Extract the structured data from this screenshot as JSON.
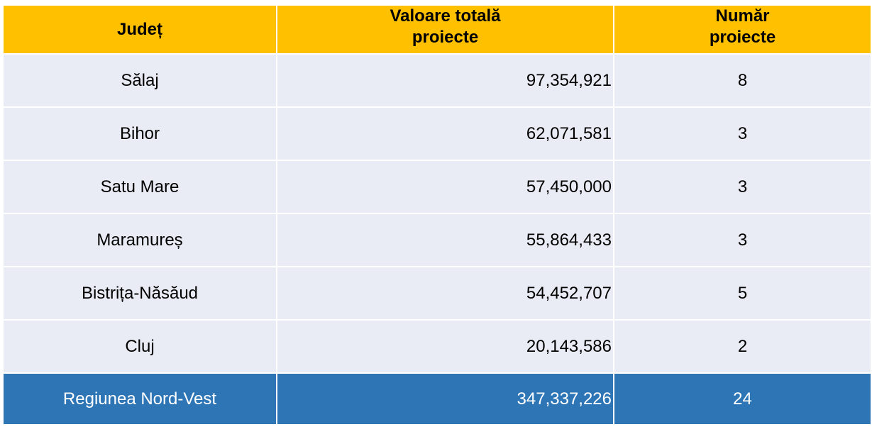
{
  "headers": {
    "county": "Județ",
    "total_value_line1": "Valoare totală",
    "total_value_line2": "proiecte",
    "project_count_line1": "Număr",
    "project_count_line2": "proiecte"
  },
  "rows": [
    {
      "county": "Sălaj",
      "value": "97,354,921",
      "count": "8"
    },
    {
      "county": "Bihor",
      "value": "62,071,581",
      "count": "3"
    },
    {
      "county": "Satu Mare",
      "value": "57,450,000",
      "count": "3"
    },
    {
      "county": "Maramureș",
      "value": "55,864,433",
      "count": "3"
    },
    {
      "county": "Bistrița-Năsăud",
      "value": "54,452,707",
      "count": "5"
    },
    {
      "county": "Cluj",
      "value": "20,143,586",
      "count": "2"
    }
  ],
  "total": {
    "county": "Regiunea Nord-Vest",
    "value": "347,337,226",
    "count": "24"
  },
  "colors": {
    "header_bg": "#ffc000",
    "row_bg": "#e9ecf4",
    "total_bg": "#2e75b6",
    "total_text": "#ffffff"
  }
}
